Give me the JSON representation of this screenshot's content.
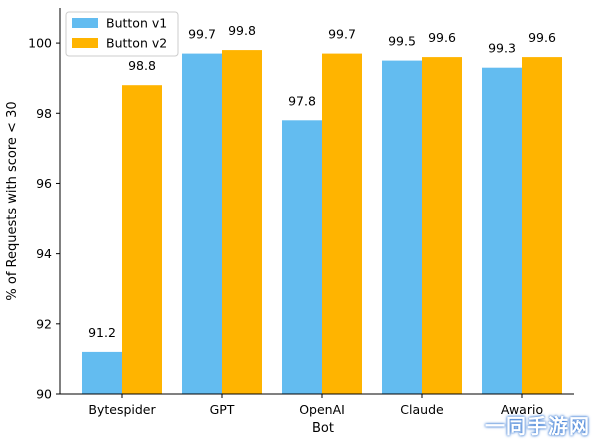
{
  "chart_data": {
    "type": "bar",
    "title": "",
    "xlabel": "Bot",
    "ylabel": "% of Requests with score < 30",
    "categories": [
      "Bytespider",
      "GPT",
      "OpenAI",
      "Claude",
      "Awario"
    ],
    "series": [
      {
        "name": "Button v1",
        "color": "#63bcf0",
        "values": [
          91.2,
          99.7,
          97.8,
          99.5,
          99.3
        ]
      },
      {
        "name": "Button v2",
        "color": "#ffb400",
        "values": [
          98.8,
          99.8,
          99.7,
          99.6,
          99.6
        ]
      }
    ],
    "ylim": [
      90,
      101
    ],
    "yticks": [
      90,
      92,
      94,
      96,
      98,
      100
    ],
    "legend_position": "top-left",
    "grid": false
  },
  "watermark": "一同手游网"
}
